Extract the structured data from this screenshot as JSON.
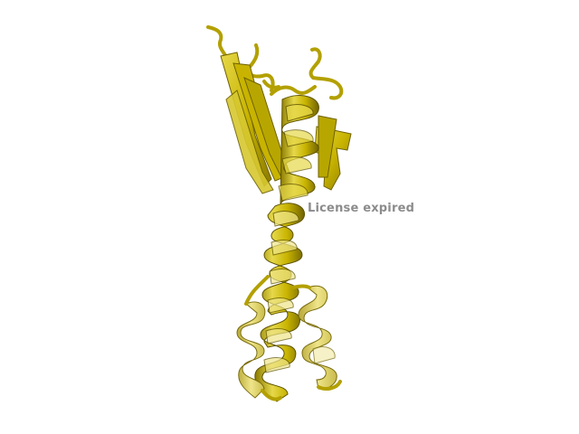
{
  "viewer": {
    "watermark": "License expired",
    "background_color": "#ffffff",
    "ribbon_color": "#c8b400",
    "ribbon_dark": "#8a7a00",
    "ribbon_light": "#e6d84a"
  },
  "structure": {
    "depiction": "protein-cartoon-ribbon",
    "secondary_elements": [
      "alpha-helix",
      "beta-strand",
      "loop"
    ]
  }
}
